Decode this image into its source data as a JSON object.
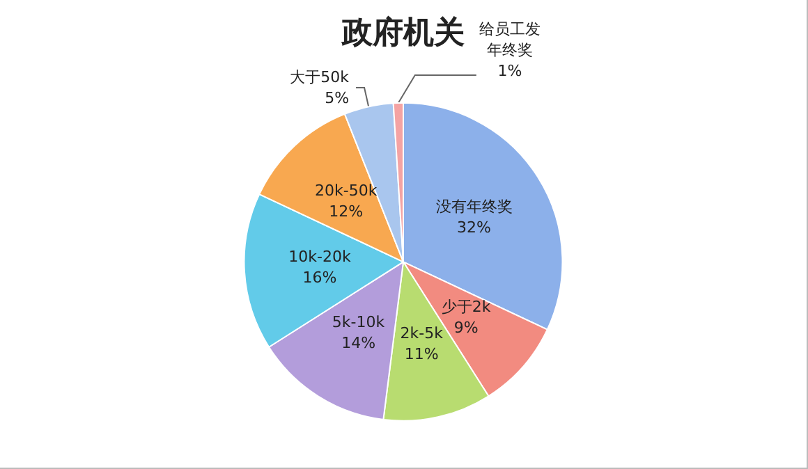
{
  "chart_data": {
    "type": "pie",
    "title": "政府机关",
    "categories": [
      "没有年终奖",
      "少于2k",
      "2k-5k",
      "5k-10k",
      "10k-20k",
      "20k-50k",
      "大于50k",
      "给员工发年终奖"
    ],
    "values": [
      32,
      9,
      11,
      14,
      16,
      12,
      5,
      1
    ],
    "value_labels": [
      "32%",
      "9%",
      "11%",
      "14%",
      "16%",
      "12%",
      "5%",
      "1%"
    ],
    "colors": [
      "#8cb0ea",
      "#f28b80",
      "#b8dc70",
      "#b39ddb",
      "#62cbe9",
      "#f8a850",
      "#a9c6ee",
      "#f4a3a3"
    ],
    "legend": false
  }
}
